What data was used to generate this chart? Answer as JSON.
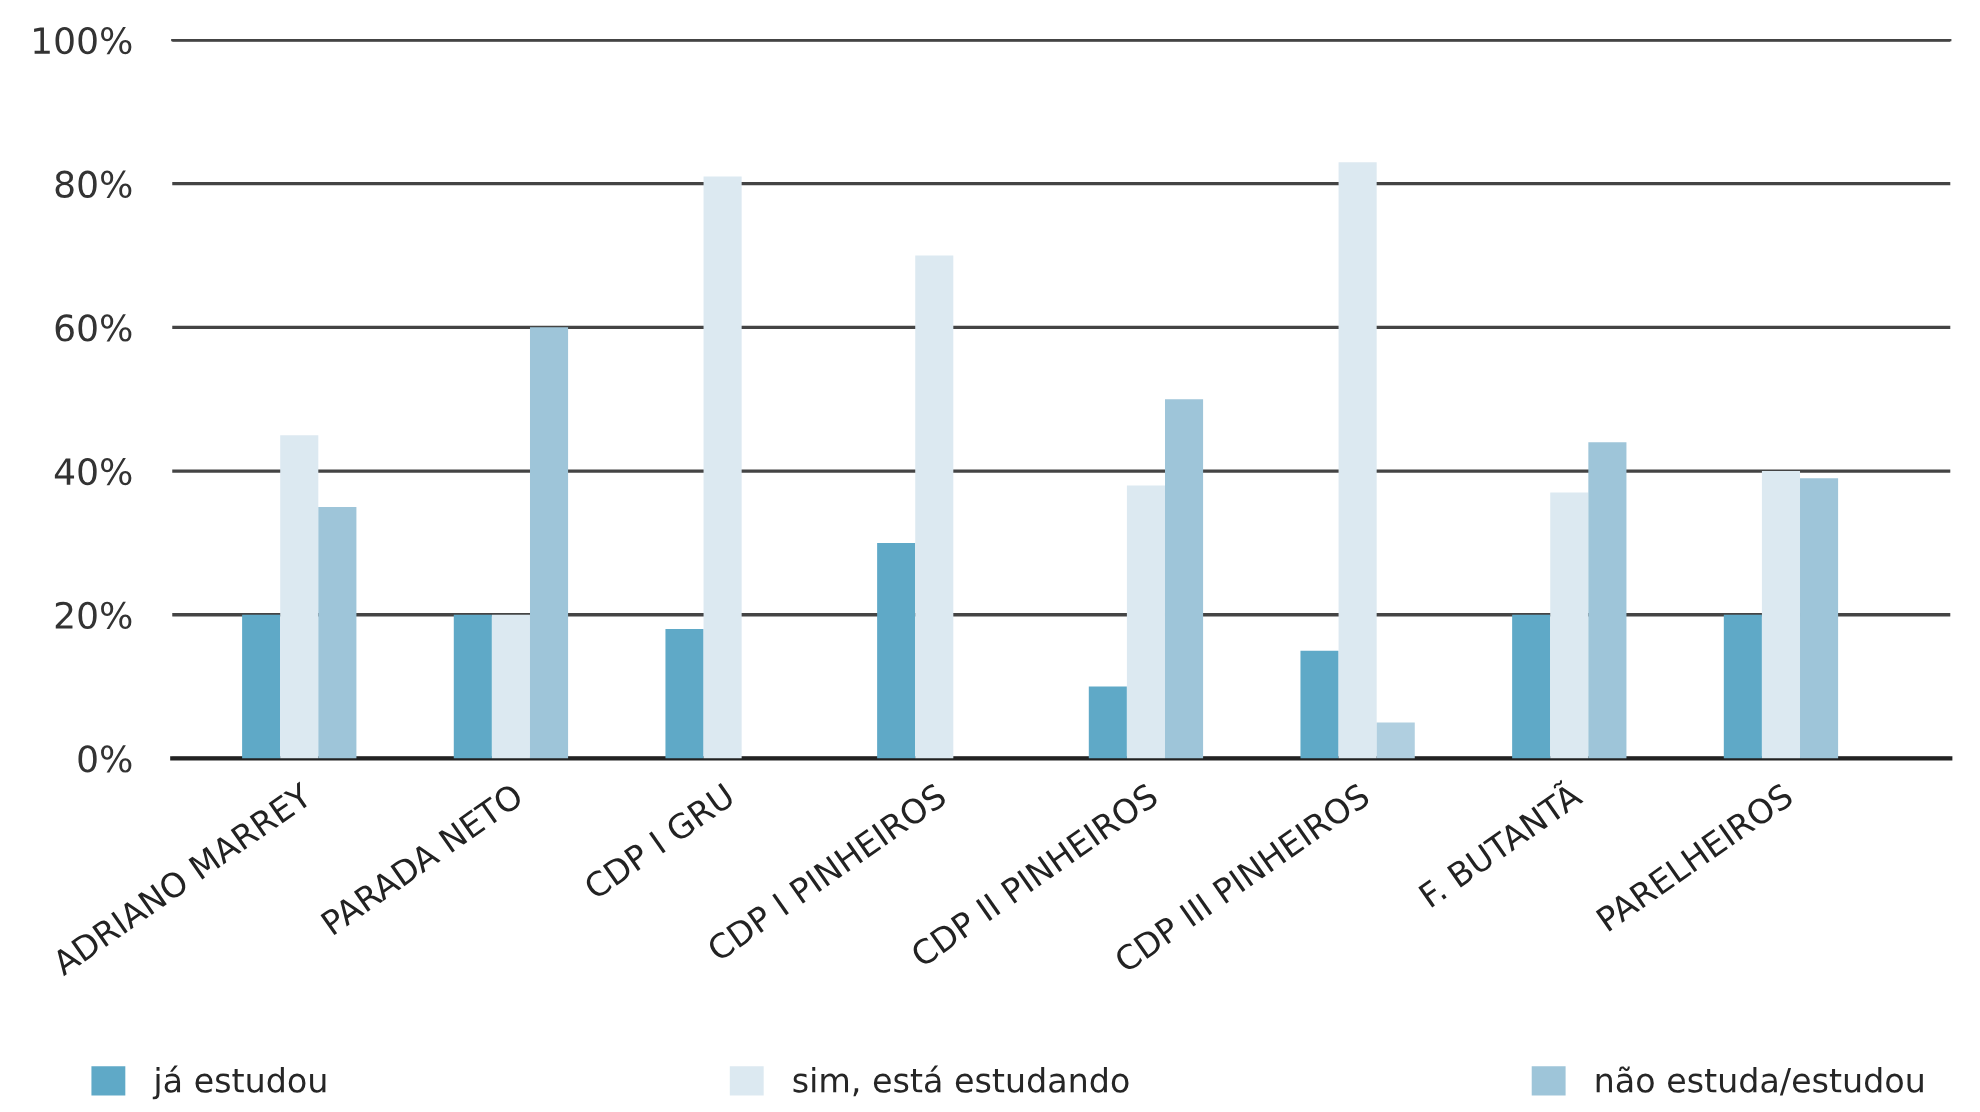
{
  "chart_data": {
    "type": "bar",
    "categories": [
      "ADRIANO MARREY",
      "PARADA NETO",
      "CDP I GRU",
      "CDP I PINHEIROS",
      "CDP II PINHEIROS",
      "CDP III PINHEIROS",
      "F. BUTANTÃ",
      "PARELHEIROS"
    ],
    "series": [
      {
        "name": "já estudou",
        "color": "#5fa9c7",
        "values": [
          20,
          20,
          18,
          30,
          10,
          15,
          20,
          20
        ]
      },
      {
        "name": "sim, está estudando",
        "color": "#dce9f1",
        "values": [
          45,
          20,
          81,
          70,
          38,
          83,
          37,
          40
        ]
      },
      {
        "name": "não estuda/estudou",
        "color": "#9ec5d9",
        "colors": [
          "#9ec5d9",
          "#9ec5d9",
          "#9ec5d9",
          "#9ec5d9",
          "#9ec5d9",
          "#b0cfe0",
          "#9ec5d9",
          "#9ec5d9"
        ],
        "values": [
          35,
          60,
          null,
          null,
          50,
          5,
          44,
          39
        ]
      }
    ],
    "ylim": [
      0,
      100
    ],
    "yticks": [
      {
        "value": 0,
        "label": "0%"
      },
      {
        "value": 20,
        "label": "20%"
      },
      {
        "value": 40,
        "label": "40%"
      },
      {
        "value": 60,
        "label": "60%"
      },
      {
        "value": 80,
        "label": "80%"
      },
      {
        "value": 100,
        "label": "100%"
      }
    ],
    "grid": "y",
    "legend": "bottom"
  }
}
